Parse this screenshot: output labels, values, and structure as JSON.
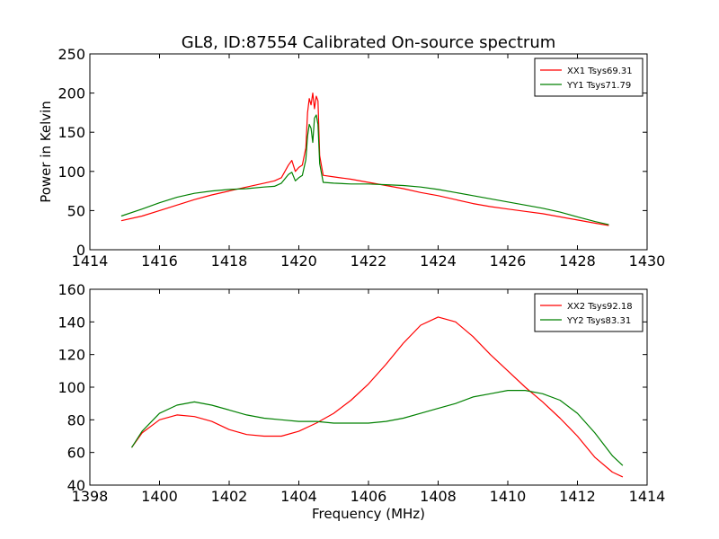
{
  "title": "GL8, ID:87554 Calibrated On-source spectrum",
  "xlabel": "Frequency (MHz)",
  "ylabel": "Power in Kelvin",
  "chart_data": [
    {
      "type": "line",
      "xlim": [
        1414,
        1430
      ],
      "ylim": [
        0,
        250
      ],
      "xticks": [
        "1414",
        "1416",
        "1418",
        "1420",
        "1422",
        "1424",
        "1426",
        "1428",
        "1430"
      ],
      "yticks": [
        "0",
        "50",
        "100",
        "150",
        "200",
        "250"
      ],
      "legend_position": "top-right",
      "grid": false,
      "series": [
        {
          "name": "XX1 Tsys69.31",
          "color": "#ff0000",
          "points": [
            [
              1414.9,
              37
            ],
            [
              1415.5,
              43
            ],
            [
              1416,
              50
            ],
            [
              1416.5,
              57
            ],
            [
              1417,
              64
            ],
            [
              1417.5,
              70
            ],
            [
              1418,
              75
            ],
            [
              1418.5,
              80
            ],
            [
              1419,
              85
            ],
            [
              1419.3,
              88
            ],
            [
              1419.5,
              92
            ],
            [
              1419.7,
              108
            ],
            [
              1419.8,
              114
            ],
            [
              1419.9,
              100
            ],
            [
              1420,
              105
            ],
            [
              1420.1,
              108
            ],
            [
              1420.2,
              130
            ],
            [
              1420.25,
              175
            ],
            [
              1420.3,
              193
            ],
            [
              1420.35,
              185
            ],
            [
              1420.4,
              200
            ],
            [
              1420.45,
              180
            ],
            [
              1420.5,
              196
            ],
            [
              1420.55,
              190
            ],
            [
              1420.6,
              120
            ],
            [
              1420.7,
              95
            ],
            [
              1421,
              93
            ],
            [
              1421.5,
              90
            ],
            [
              1422,
              86
            ],
            [
              1422.5,
              82
            ],
            [
              1423,
              78
            ],
            [
              1423.5,
              73
            ],
            [
              1424,
              69
            ],
            [
              1424.5,
              64
            ],
            [
              1425,
              59
            ],
            [
              1425.5,
              55
            ],
            [
              1426,
              52
            ],
            [
              1426.5,
              49
            ],
            [
              1427,
              46
            ],
            [
              1427.5,
              42
            ],
            [
              1428,
              38
            ],
            [
              1428.5,
              34
            ],
            [
              1428.9,
              31
            ]
          ]
        },
        {
          "name": "YY1 Tsys71.79",
          "color": "#008000",
          "points": [
            [
              1414.9,
              43
            ],
            [
              1415.5,
              52
            ],
            [
              1416,
              60
            ],
            [
              1416.5,
              67
            ],
            [
              1417,
              72
            ],
            [
              1417.5,
              75
            ],
            [
              1418,
              77
            ],
            [
              1418.5,
              78
            ],
            [
              1419,
              80
            ],
            [
              1419.3,
              81
            ],
            [
              1419.5,
              85
            ],
            [
              1419.7,
              96
            ],
            [
              1419.8,
              99
            ],
            [
              1419.9,
              88
            ],
            [
              1420,
              92
            ],
            [
              1420.1,
              95
            ],
            [
              1420.2,
              115
            ],
            [
              1420.25,
              145
            ],
            [
              1420.3,
              160
            ],
            [
              1420.35,
              155
            ],
            [
              1420.4,
              137
            ],
            [
              1420.45,
              168
            ],
            [
              1420.5,
              172
            ],
            [
              1420.55,
              160
            ],
            [
              1420.6,
              110
            ],
            [
              1420.7,
              86
            ],
            [
              1421,
              85
            ],
            [
              1421.5,
              84
            ],
            [
              1422,
              84
            ],
            [
              1422.5,
              83
            ],
            [
              1423,
              82
            ],
            [
              1423.5,
              80
            ],
            [
              1424,
              77
            ],
            [
              1424.5,
              73
            ],
            [
              1425,
              69
            ],
            [
              1425.5,
              65
            ],
            [
              1426,
              61
            ],
            [
              1426.5,
              57
            ],
            [
              1427,
              53
            ],
            [
              1427.5,
              48
            ],
            [
              1428,
              42
            ],
            [
              1428.5,
              36
            ],
            [
              1428.9,
              32
            ]
          ]
        }
      ]
    },
    {
      "type": "line",
      "xlim": [
        1398,
        1414
      ],
      "ylim": [
        40,
        160
      ],
      "xticks": [
        "1398",
        "1400",
        "1402",
        "1404",
        "1406",
        "1408",
        "1410",
        "1412",
        "1414"
      ],
      "yticks": [
        "40",
        "60",
        "80",
        "100",
        "120",
        "140",
        "160"
      ],
      "legend_position": "top-right",
      "grid": false,
      "series": [
        {
          "name": "XX2 Tsys92.18",
          "color": "#ff0000",
          "points": [
            [
              1399.2,
              63
            ],
            [
              1399.5,
              72
            ],
            [
              1400,
              80
            ],
            [
              1400.5,
              83
            ],
            [
              1401,
              82
            ],
            [
              1401.5,
              79
            ],
            [
              1402,
              74
            ],
            [
              1402.5,
              71
            ],
            [
              1403,
              70
            ],
            [
              1403.5,
              70
            ],
            [
              1404,
              73
            ],
            [
              1404.5,
              78
            ],
            [
              1405,
              84
            ],
            [
              1405.5,
              92
            ],
            [
              1406,
              102
            ],
            [
              1406.5,
              114
            ],
            [
              1407,
              127
            ],
            [
              1407.5,
              138
            ],
            [
              1408,
              143
            ],
            [
              1408.5,
              140
            ],
            [
              1409,
              131
            ],
            [
              1409.5,
              120
            ],
            [
              1410,
              110
            ],
            [
              1410.5,
              100
            ],
            [
              1411,
              91
            ],
            [
              1411.5,
              81
            ],
            [
              1412,
              70
            ],
            [
              1412.5,
              57
            ],
            [
              1413,
              48
            ],
            [
              1413.3,
              45
            ]
          ]
        },
        {
          "name": "YY2 Tsys83.31",
          "color": "#008000",
          "points": [
            [
              1399.2,
              63
            ],
            [
              1399.5,
              73
            ],
            [
              1400,
              84
            ],
            [
              1400.5,
              89
            ],
            [
              1401,
              91
            ],
            [
              1401.5,
              89
            ],
            [
              1402,
              86
            ],
            [
              1402.5,
              83
            ],
            [
              1403,
              81
            ],
            [
              1403.5,
              80
            ],
            [
              1404,
              79
            ],
            [
              1404.5,
              79
            ],
            [
              1405,
              78
            ],
            [
              1405.5,
              78
            ],
            [
              1406,
              78
            ],
            [
              1406.5,
              79
            ],
            [
              1407,
              81
            ],
            [
              1407.5,
              84
            ],
            [
              1408,
              87
            ],
            [
              1408.5,
              90
            ],
            [
              1409,
              94
            ],
            [
              1409.5,
              96
            ],
            [
              1410,
              98
            ],
            [
              1410.5,
              98
            ],
            [
              1411,
              96
            ],
            [
              1411.5,
              92
            ],
            [
              1412,
              84
            ],
            [
              1412.5,
              72
            ],
            [
              1413,
              58
            ],
            [
              1413.3,
              52
            ]
          ]
        }
      ]
    }
  ]
}
